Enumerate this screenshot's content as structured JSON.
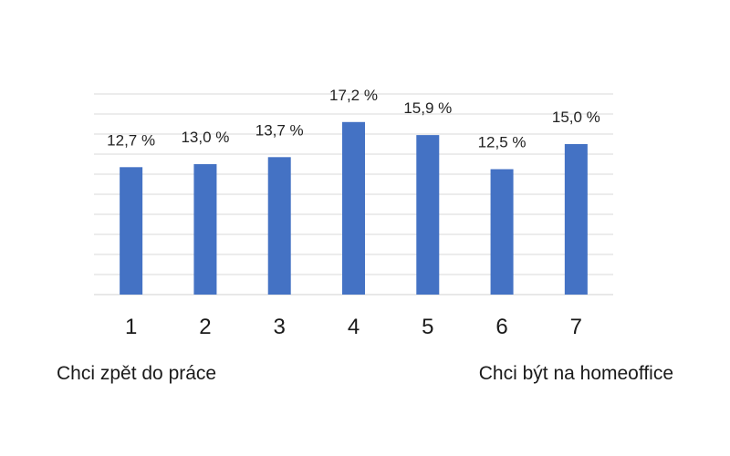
{
  "chart_data": {
    "type": "bar",
    "categories": [
      "1",
      "2",
      "3",
      "4",
      "5",
      "6",
      "7"
    ],
    "values": [
      12.7,
      13.0,
      13.7,
      17.2,
      15.9,
      12.5,
      15.0
    ],
    "data_labels": [
      "12,7 %",
      "13,0 %",
      "13,7 %",
      "17,2 %",
      "15,9 %",
      "12,5 %",
      "15,0 %"
    ],
    "ylim": [
      0,
      20
    ],
    "grid": true,
    "bar_color": "#4472c4",
    "grid_color": "#d9d9d9"
  },
  "scale": {
    "left_label": "Chci zpět do práce",
    "right_label": "Chci být na homeoffice"
  }
}
